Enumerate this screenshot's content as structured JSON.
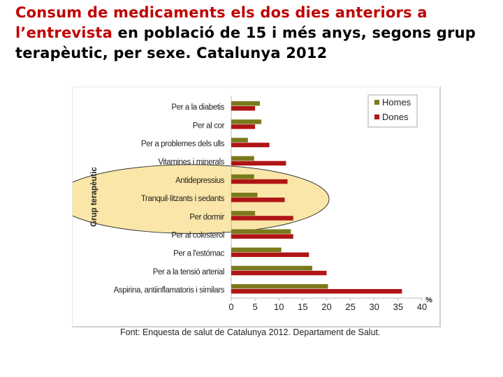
{
  "title": {
    "part1": "Consum de medicaments els dos dies anteriors a l’entrevista",
    "part2": " en població de 15 i més anys, segons grup terapèutic, per sexe. Catalunya 2012"
  },
  "chart_data": {
    "type": "bar",
    "orientation": "horizontal",
    "categories": [
      "Per a la diabetis",
      "Per al cor",
      "Per a problemes dels ulls",
      "Vitamines i minerals",
      "Antidepressius",
      "Tranquil·litzants i sedants",
      "Per dormir",
      "Per al colesterol",
      "Per a l'estómac",
      "Per a la tensió arterial",
      "Aspirina, antiinflamatoris i similars"
    ],
    "series": [
      {
        "name": "Homes",
        "color": "#7a7a1c",
        "values": [
          6,
          6.3,
          3.5,
          4.8,
          4.8,
          5.5,
          5,
          12.5,
          10.5,
          17,
          20.3
        ]
      },
      {
        "name": "Dones",
        "color": "#b01515",
        "values": [
          5,
          5,
          8,
          11.5,
          11.8,
          11.2,
          13,
          13,
          16.3,
          20,
          35.8
        ]
      }
    ],
    "xlabel": "%",
    "ylabel": "Grup terapèutic",
    "xlim": [
      0,
      40
    ],
    "xticks": [
      0,
      5,
      10,
      15,
      20,
      25,
      30,
      35,
      40
    ],
    "legend_position": "top-right",
    "highlight": {
      "shape": "ellipse",
      "color": "#f7d87a",
      "categories": [
        "Antidepressius",
        "Tranquil·litzants i sedants",
        "Per dormir"
      ]
    }
  },
  "caption": "Font: Enquesta de salut de Catalunya 2012. Departament de Salut."
}
